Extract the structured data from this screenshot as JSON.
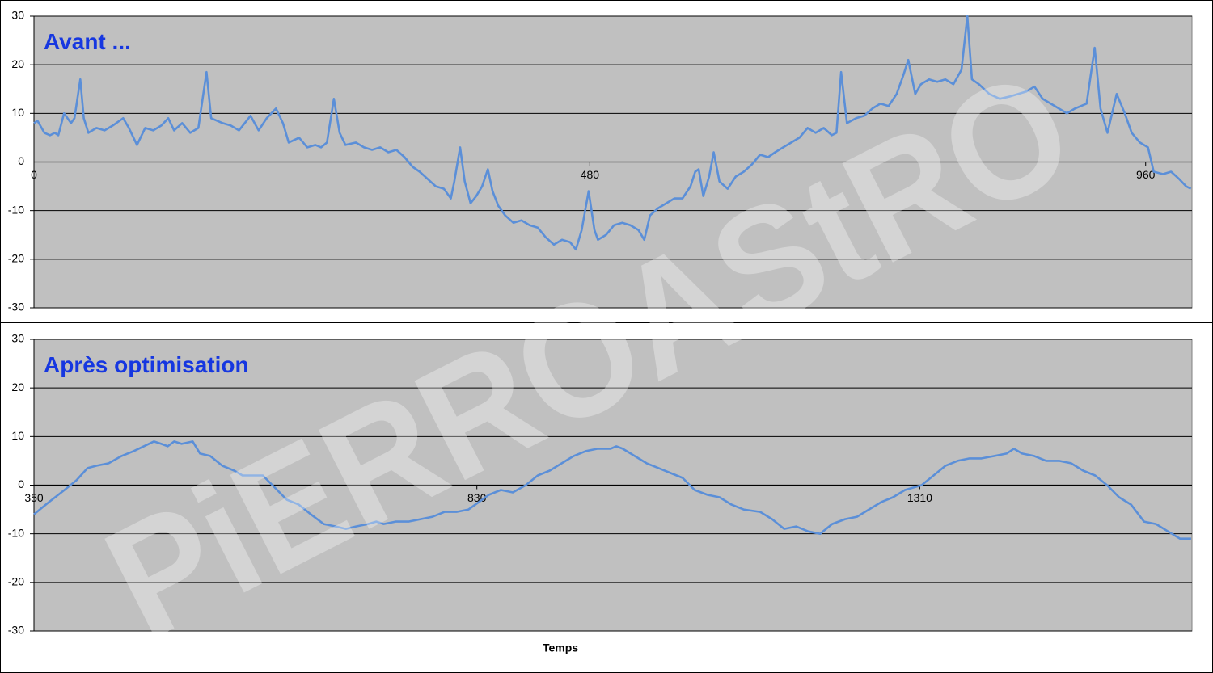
{
  "watermark": "PiERROAStRO",
  "chart_data": [
    {
      "type": "line",
      "title": "Avant ...",
      "color": "#5b8fd8",
      "grid": true,
      "xlim": [
        0,
        1000
      ],
      "xticks": [
        0,
        480,
        960
      ],
      "ylim": [
        -30,
        30
      ],
      "yticks": [
        -30,
        -20,
        -10,
        0,
        10,
        20,
        30
      ],
      "x": [
        0,
        3,
        9,
        14,
        18,
        21,
        26,
        32,
        35,
        40,
        43,
        47,
        54,
        61,
        68,
        77,
        82,
        89,
        96,
        103,
        110,
        116,
        121,
        128,
        135,
        142,
        149,
        153,
        163,
        170,
        177,
        187,
        194,
        201,
        209,
        215,
        220,
        229,
        236,
        243,
        248,
        253,
        259,
        264,
        269,
        278,
        285,
        292,
        299,
        306,
        313,
        320,
        327,
        333,
        340,
        347,
        354,
        360,
        363,
        368,
        372,
        377,
        382,
        387,
        392,
        396,
        401,
        407,
        414,
        421,
        428,
        435,
        442,
        449,
        456,
        463,
        468,
        473,
        479,
        484,
        487,
        494,
        501,
        508,
        515,
        522,
        527,
        532,
        539,
        546,
        553,
        560,
        567,
        571,
        574,
        578,
        583,
        587,
        592,
        599,
        606,
        613,
        620,
        627,
        634,
        640,
        647,
        654,
        661,
        668,
        675,
        682,
        689,
        693,
        697,
        702,
        710,
        717,
        724,
        731,
        738,
        745,
        751,
        755,
        761,
        766,
        773,
        780,
        787,
        794,
        801,
        806,
        810,
        816,
        825,
        834,
        843,
        850,
        857,
        864,
        871,
        878,
        885,
        892,
        899,
        909,
        916,
        921,
        927,
        935,
        942,
        948,
        955,
        962,
        967,
        975,
        982,
        989,
        995,
        999
      ],
      "values": [
        8,
        8.5,
        6,
        5.5,
        6,
        5.5,
        10,
        8,
        9,
        17,
        9,
        6,
        7,
        6.5,
        7.5,
        9,
        7,
        3.5,
        7,
        6.5,
        7.5,
        9,
        6.5,
        8,
        6,
        7,
        18.5,
        9,
        8,
        7.5,
        6.5,
        9.5,
        6.5,
        9,
        11,
        8,
        4,
        5,
        3,
        3.5,
        3,
        4,
        13,
        6,
        3.5,
        4,
        3,
        2.5,
        3,
        2,
        2.5,
        1,
        -1,
        -2,
        -3.5,
        -5,
        -5.5,
        -7.5,
        -4,
        3,
        -4,
        -8.5,
        -7,
        -5,
        -1.5,
        -6,
        -9,
        -11,
        -12.5,
        -12,
        -13,
        -13.5,
        -15.5,
        -17,
        -16,
        -16.5,
        -18,
        -14,
        -6,
        -14,
        -16,
        -15,
        -13,
        -12.5,
        -13,
        -14,
        -16,
        -11,
        -9.5,
        -8.5,
        -7.5,
        -7.5,
        -5,
        -2,
        -1.5,
        -7,
        -3,
        2,
        -4,
        -5.5,
        -3,
        -2,
        -0.5,
        1.5,
        1,
        2,
        3,
        4,
        5,
        7,
        6,
        7,
        5.5,
        6,
        18.5,
        8,
        9,
        9.5,
        11,
        12,
        11.5,
        14,
        18,
        21,
        14,
        16,
        17,
        16.5,
        17,
        16,
        19,
        30,
        17,
        16,
        14,
        13,
        13.5,
        14,
        14.5,
        15.5,
        13,
        12,
        11,
        10,
        11,
        12,
        23.5,
        11,
        6,
        14,
        10,
        6,
        4,
        3,
        -2,
        -2.5,
        -2,
        -3.5,
        -5,
        -5.5
      ]
    },
    {
      "type": "line",
      "title": "Après optimisation",
      "xlabel": "Temps",
      "color": "#5b8fd8",
      "grid": true,
      "xlim": [
        350,
        1605
      ],
      "xticks": [
        350,
        830,
        1310
      ],
      "ylim": [
        -30,
        30
      ],
      "yticks": [
        -30,
        -20,
        -10,
        0,
        10,
        20,
        30
      ],
      "x": [
        350,
        366,
        383,
        396,
        408,
        418,
        431,
        445,
        458,
        469,
        480,
        488,
        495,
        502,
        510,
        522,
        530,
        541,
        554,
        567,
        576,
        585,
        598,
        611,
        624,
        637,
        650,
        664,
        677,
        688,
        699,
        712,
        721,
        729,
        742,
        756,
        769,
        782,
        795,
        808,
        821,
        832,
        843,
        856,
        869,
        883,
        896,
        909,
        922,
        935,
        948,
        961,
        975,
        981,
        988,
        1001,
        1014,
        1027,
        1040,
        1053,
        1066,
        1080,
        1093,
        1106,
        1119,
        1137,
        1150,
        1163,
        1176,
        1189,
        1202,
        1215,
        1229,
        1242,
        1255,
        1268,
        1281,
        1294,
        1312,
        1325,
        1338,
        1351,
        1364,
        1377,
        1391,
        1404,
        1412,
        1421,
        1434,
        1447,
        1461,
        1474,
        1487,
        1500,
        1513,
        1526,
        1539,
        1553,
        1566,
        1579,
        1592,
        1604
      ],
      "values": [
        -6,
        -3.5,
        -1,
        1,
        3.5,
        4,
        4.5,
        6,
        7,
        8,
        9,
        8.5,
        8,
        9,
        8.5,
        9,
        6.5,
        6,
        4,
        3,
        2,
        2,
        2,
        -0.5,
        -3,
        -4,
        -6,
        -8,
        -8.5,
        -9,
        -8.5,
        -8,
        -7.5,
        -8,
        -7.5,
        -7.5,
        -7,
        -6.5,
        -5.5,
        -5.5,
        -5,
        -3.5,
        -2,
        -1,
        -1.5,
        0,
        2,
        3,
        4.5,
        6,
        7,
        7.5,
        7.5,
        8,
        7.5,
        6,
        4.5,
        3.5,
        2.5,
        1.5,
        -1,
        -2,
        -2.5,
        -4,
        -5,
        -5.5,
        -7,
        -9,
        -8.5,
        -9.5,
        -10,
        -8,
        -7,
        -6.5,
        -5,
        -3.5,
        -2.5,
        -1,
        0,
        2,
        4,
        5,
        5.5,
        5.5,
        6,
        6.5,
        7.5,
        6.5,
        6,
        5,
        5,
        4.5,
        3,
        2,
        0,
        -2.5,
        -4,
        -7.5,
        -8,
        -9.5,
        -11,
        -11
      ]
    }
  ]
}
